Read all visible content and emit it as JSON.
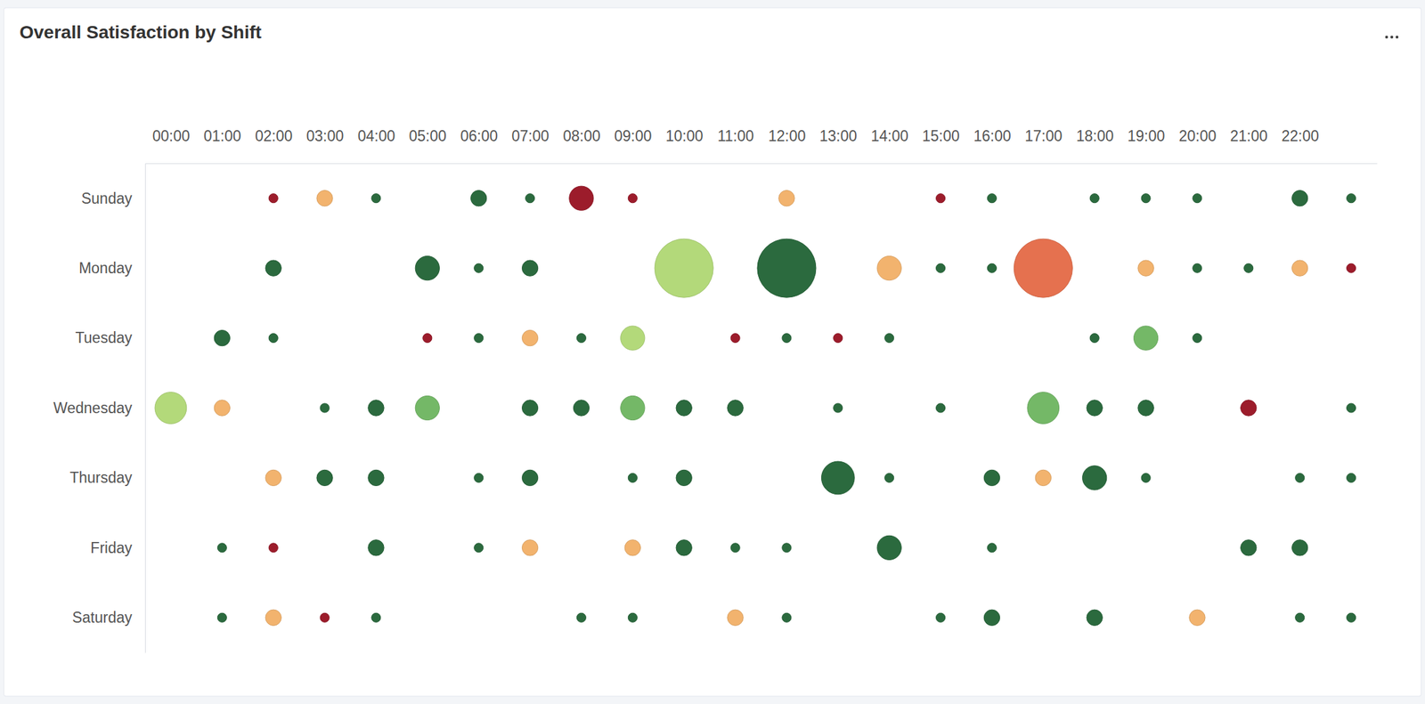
{
  "chart_data": {
    "type": "bubble",
    "title": "Overall Satisfaction by Shift",
    "categories": [
      "00:00",
      "01:00",
      "02:00",
      "03:00",
      "04:00",
      "05:00",
      "06:00",
      "07:00",
      "08:00",
      "09:00",
      "10:00",
      "11:00",
      "12:00",
      "13:00",
      "14:00",
      "15:00",
      "16:00",
      "17:00",
      "18:00",
      "19:00",
      "20:00",
      "21:00",
      "22:00",
      null
    ],
    "series": [
      {
        "name": "Sunday",
        "values": [
          null,
          null,
          1,
          3,
          1,
          null,
          3,
          1,
          7,
          1,
          null,
          null,
          3,
          null,
          null,
          1,
          1,
          null,
          1,
          1,
          1,
          null,
          3,
          1
        ],
        "colors": [
          null,
          null,
          "#9c1c2b",
          "#f2b36e",
          "#2b6a3e",
          null,
          "#2b6a3e",
          "#2b6a3e",
          "#9c1c2b",
          "#9c1c2b",
          null,
          null,
          "#f2b36e",
          null,
          null,
          "#9c1c2b",
          "#2b6a3e",
          null,
          "#2b6a3e",
          "#2b6a3e",
          "#2b6a3e",
          null,
          "#2b6a3e",
          "#2b6a3e"
        ]
      },
      {
        "name": "Monday",
        "values": [
          null,
          null,
          3,
          null,
          null,
          7,
          1,
          3,
          null,
          null,
          41,
          null,
          41,
          null,
          7,
          1,
          1,
          41,
          null,
          3,
          1,
          1,
          3,
          1
        ],
        "colors": [
          null,
          null,
          "#2b6a3e",
          null,
          null,
          "#2b6a3e",
          "#2b6a3e",
          "#2b6a3e",
          null,
          null,
          "#b3d97a",
          null,
          "#2b6a3e",
          null,
          "#f2b36e",
          "#2b6a3e",
          "#2b6a3e",
          "#e5714f",
          null,
          "#f2b36e",
          "#2b6a3e",
          "#2b6a3e",
          "#f2b36e",
          "#9c1c2b"
        ]
      },
      {
        "name": "Tuesday",
        "values": [
          null,
          3,
          1,
          null,
          null,
          1,
          1,
          3,
          1,
          7,
          null,
          1,
          1,
          1,
          1,
          null,
          null,
          null,
          1,
          7,
          1,
          null,
          null,
          null
        ],
        "colors": [
          null,
          "#2b6a3e",
          "#2b6a3e",
          null,
          null,
          "#9c1c2b",
          "#2b6a3e",
          "#f2b36e",
          "#2b6a3e",
          "#b3d97a",
          null,
          "#9c1c2b",
          "#2b6a3e",
          "#9c1c2b",
          "#2b6a3e",
          null,
          null,
          null,
          "#2b6a3e",
          "#74b867",
          "#2b6a3e",
          null,
          null,
          null
        ]
      },
      {
        "name": "Wednesday",
        "values": [
          12,
          3,
          null,
          1,
          3,
          7,
          null,
          3,
          3,
          7,
          3,
          3,
          null,
          1,
          null,
          1,
          null,
          12,
          3,
          3,
          null,
          3,
          null,
          1
        ],
        "colors": [
          "#b3d97a",
          "#f2b36e",
          null,
          "#2b6a3e",
          "#2b6a3e",
          "#74b867",
          null,
          "#2b6a3e",
          "#2b6a3e",
          "#74b867",
          "#2b6a3e",
          "#2b6a3e",
          null,
          "#2b6a3e",
          null,
          "#2b6a3e",
          null,
          "#74b867",
          "#2b6a3e",
          "#2b6a3e",
          null,
          "#9c1c2b",
          null,
          "#2b6a3e"
        ]
      },
      {
        "name": "Thursday",
        "values": [
          null,
          null,
          3,
          3,
          3,
          null,
          1,
          3,
          null,
          1,
          3,
          null,
          null,
          13,
          1,
          null,
          3,
          3,
          7,
          1,
          null,
          null,
          1,
          1
        ],
        "colors": [
          null,
          null,
          "#f2b36e",
          "#2b6a3e",
          "#2b6a3e",
          null,
          "#2b6a3e",
          "#2b6a3e",
          null,
          "#2b6a3e",
          "#2b6a3e",
          null,
          null,
          "#2b6a3e",
          "#2b6a3e",
          null,
          "#2b6a3e",
          "#f2b36e",
          "#2b6a3e",
          "#2b6a3e",
          null,
          null,
          "#2b6a3e",
          "#2b6a3e"
        ]
      },
      {
        "name": "Friday",
        "values": [
          null,
          1,
          1,
          null,
          3,
          null,
          1,
          3,
          null,
          3,
          3,
          1,
          1,
          null,
          7,
          null,
          1,
          null,
          null,
          null,
          null,
          3,
          3,
          null
        ],
        "colors": [
          null,
          "#2b6a3e",
          "#9c1c2b",
          null,
          "#2b6a3e",
          null,
          "#2b6a3e",
          "#f2b36e",
          null,
          "#f2b36e",
          "#2b6a3e",
          "#2b6a3e",
          "#2b6a3e",
          null,
          "#2b6a3e",
          null,
          "#2b6a3e",
          null,
          null,
          null,
          null,
          "#2b6a3e",
          "#2b6a3e",
          null
        ]
      },
      {
        "name": "Saturday",
        "values": [
          null,
          1,
          3,
          1,
          1,
          null,
          null,
          null,
          1,
          1,
          null,
          3,
          1,
          null,
          null,
          1,
          3,
          null,
          3,
          null,
          3,
          null,
          1,
          1
        ],
        "colors": [
          null,
          "#2b6a3e",
          "#f2b36e",
          "#9c1c2b",
          "#2b6a3e",
          null,
          null,
          null,
          "#2b6a3e",
          "#2b6a3e",
          null,
          "#f2b36e",
          "#2b6a3e",
          null,
          null,
          "#2b6a3e",
          "#2b6a3e",
          null,
          "#2b6a3e",
          null,
          "#f2b36e",
          null,
          "#2b6a3e",
          "#2b6a3e"
        ]
      }
    ]
  }
}
